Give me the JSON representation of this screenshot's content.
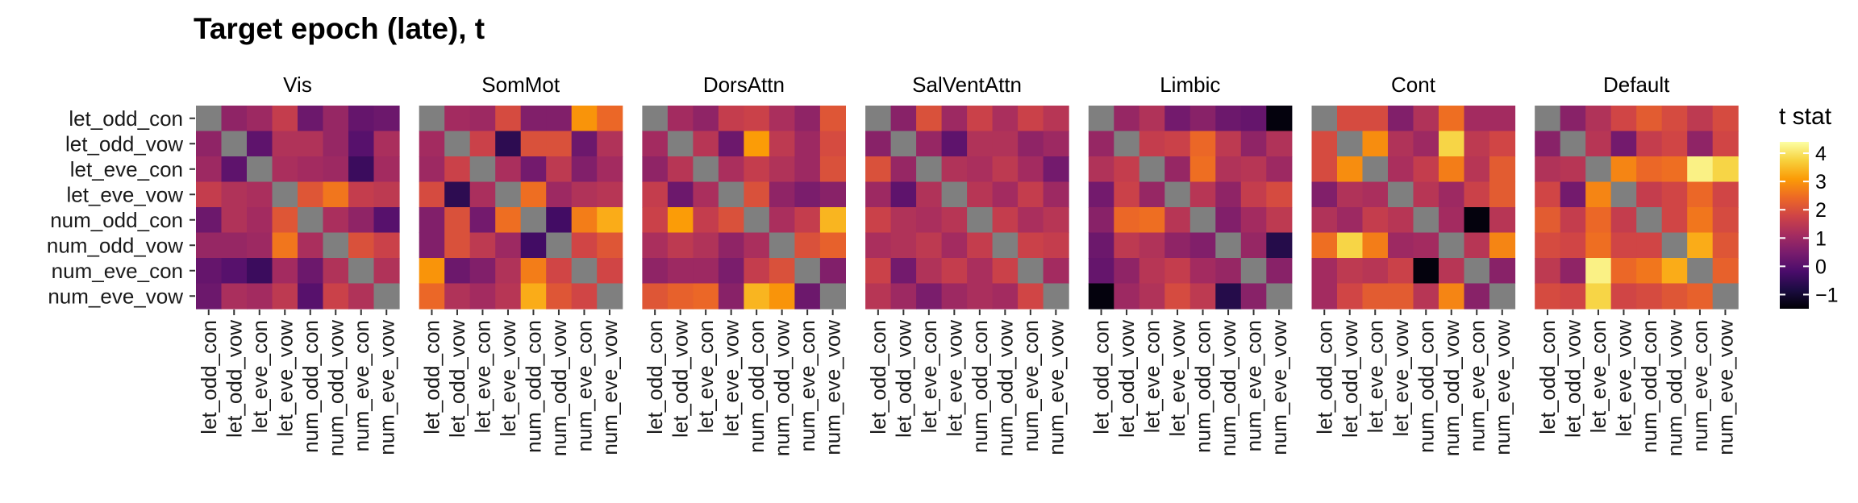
{
  "chart_data": {
    "type": "heatmap",
    "title": "Target epoch (late), t",
    "legend": {
      "title": "t stat",
      "position": "right",
      "ticks": [
        -1,
        0,
        1,
        2,
        3,
        4
      ],
      "range": [
        -1.5,
        4.4
      ]
    },
    "conditions": [
      "let_odd_con",
      "let_odd_vow",
      "let_eve_con",
      "let_eve_vow",
      "num_odd_con",
      "num_odd_vow",
      "num_eve_con",
      "num_eve_vow"
    ],
    "diagonal": "NA (grey)",
    "na_color": "#7f7f7f",
    "colors": {
      "scale": [
        "#000004",
        "#1b0c41",
        "#4a0c6b",
        "#781c6d",
        "#a52c60",
        "#cf4446",
        "#ed6925",
        "#fb9b06",
        "#f7d13d",
        "#fcffa4"
      ]
    },
    "panels": [
      {
        "name": "Vis",
        "matrix": [
          [
            null,
            0.8,
            1.0,
            1.6,
            0.3,
            0.9,
            0.2,
            0.3
          ],
          [
            0.8,
            null,
            0.1,
            1.3,
            1.3,
            0.9,
            0.0,
            1.2
          ],
          [
            1.0,
            0.1,
            null,
            1.2,
            1.1,
            1.0,
            -0.4,
            1.1
          ],
          [
            1.6,
            1.3,
            1.2,
            null,
            2.1,
            2.6,
            1.6,
            1.5
          ],
          [
            0.3,
            1.3,
            1.1,
            2.1,
            null,
            1.2,
            0.8,
            0.0
          ],
          [
            0.9,
            0.9,
            1.0,
            2.6,
            1.2,
            null,
            2.0,
            1.7
          ],
          [
            0.2,
            0.0,
            -0.4,
            1.1,
            0.3,
            1.3,
            null,
            1.3
          ],
          [
            0.3,
            1.2,
            1.1,
            1.5,
            0.0,
            1.7,
            1.3,
            null
          ]
        ]
      },
      {
        "name": "SomMot",
        "matrix": [
          [
            null,
            1.1,
            1.0,
            1.9,
            0.6,
            0.6,
            3.0,
            2.4
          ],
          [
            1.1,
            null,
            1.7,
            -0.6,
            2.0,
            2.0,
            0.3,
            1.3
          ],
          [
            1.0,
            1.7,
            null,
            1.2,
            0.4,
            1.5,
            0.6,
            1.1
          ],
          [
            1.9,
            -0.6,
            1.2,
            null,
            2.5,
            1.0,
            1.3,
            1.4
          ],
          [
            0.6,
            2.0,
            0.4,
            2.5,
            null,
            -0.3,
            2.7,
            3.3
          ],
          [
            0.6,
            2.0,
            1.5,
            1.0,
            -0.3,
            null,
            1.8,
            2.1
          ],
          [
            3.0,
            0.3,
            0.6,
            1.3,
            2.7,
            1.8,
            null,
            1.8
          ],
          [
            2.4,
            1.3,
            1.1,
            1.4,
            3.3,
            2.1,
            1.8,
            null
          ]
        ]
      },
      {
        "name": "DorsAttn",
        "matrix": [
          [
            null,
            1.1,
            0.8,
            1.6,
            1.7,
            1.2,
            0.8,
            2.1
          ],
          [
            1.1,
            null,
            1.4,
            0.3,
            3.1,
            1.5,
            1.0,
            1.9
          ],
          [
            0.8,
            1.4,
            null,
            1.2,
            1.6,
            1.3,
            1.0,
            2.0
          ],
          [
            1.6,
            0.3,
            1.2,
            null,
            2.0,
            0.8,
            0.5,
            0.7
          ],
          [
            1.7,
            3.1,
            1.6,
            2.0,
            null,
            1.2,
            1.6,
            3.4
          ],
          [
            1.2,
            1.5,
            1.3,
            0.8,
            1.2,
            null,
            2.0,
            2.3
          ],
          [
            0.8,
            1.0,
            1.0,
            0.5,
            1.6,
            2.0,
            null,
            0.6
          ],
          [
            2.1,
            2.3,
            2.4,
            0.7,
            3.4,
            3.0,
            0.3,
            null
          ]
        ]
      },
      {
        "name": "SalVentAttn",
        "matrix": [
          [
            null,
            0.7,
            2.0,
            1.0,
            1.7,
            1.2,
            1.7,
            1.4
          ],
          [
            0.7,
            null,
            0.9,
            0.1,
            1.3,
            1.3,
            0.8,
            1.0
          ],
          [
            2.0,
            0.9,
            null,
            1.3,
            1.2,
            1.5,
            1.1,
            0.4
          ],
          [
            1.0,
            0.1,
            1.3,
            null,
            1.4,
            1.1,
            1.6,
            1.0
          ],
          [
            1.7,
            1.3,
            1.2,
            1.4,
            null,
            1.6,
            1.2,
            1.4
          ],
          [
            1.2,
            1.3,
            1.5,
            1.1,
            1.6,
            null,
            1.7,
            1.6
          ],
          [
            1.7,
            0.4,
            1.3,
            1.6,
            1.2,
            1.7,
            null,
            1.1
          ],
          [
            1.4,
            1.0,
            0.5,
            1.0,
            1.2,
            1.1,
            1.8,
            null
          ]
        ]
      },
      {
        "name": "Limbic",
        "matrix": [
          [
            null,
            0.9,
            1.3,
            0.4,
            0.7,
            0.3,
            0.2,
            -1.4
          ],
          [
            0.9,
            null,
            1.6,
            1.7,
            2.4,
            1.5,
            0.8,
            1.3
          ],
          [
            1.3,
            1.6,
            null,
            0.9,
            2.5,
            1.3,
            1.4,
            1.0
          ],
          [
            0.4,
            1.7,
            0.9,
            null,
            1.4,
            0.8,
            1.6,
            1.9
          ],
          [
            0.7,
            2.4,
            2.5,
            1.4,
            null,
            0.6,
            1.1,
            1.5
          ],
          [
            0.3,
            1.5,
            1.3,
            0.8,
            0.6,
            null,
            0.9,
            -0.7
          ],
          [
            0.2,
            0.8,
            1.4,
            1.6,
            1.1,
            0.9,
            null,
            0.7
          ],
          [
            -1.4,
            1.0,
            1.3,
            1.9,
            1.5,
            -0.7,
            0.7,
            null
          ]
        ]
      },
      {
        "name": "Cont",
        "matrix": [
          [
            null,
            1.9,
            1.9,
            0.6,
            1.3,
            2.5,
            1.1,
            1.1
          ],
          [
            1.9,
            null,
            2.9,
            1.3,
            1.0,
            3.8,
            1.5,
            1.8
          ],
          [
            1.9,
            2.9,
            null,
            1.2,
            1.6,
            2.7,
            1.4,
            2.2
          ],
          [
            0.6,
            1.3,
            1.2,
            null,
            1.4,
            1.0,
            1.7,
            2.2
          ],
          [
            1.3,
            1.0,
            1.6,
            1.4,
            null,
            1.1,
            -1.4,
            1.4
          ],
          [
            2.5,
            3.8,
            2.7,
            1.0,
            1.1,
            null,
            1.4,
            2.8
          ],
          [
            1.1,
            1.5,
            1.4,
            1.7,
            -1.4,
            1.4,
            null,
            0.7
          ],
          [
            1.1,
            1.8,
            2.2,
            2.2,
            1.4,
            2.8,
            0.7,
            null
          ]
        ]
      },
      {
        "name": "Default",
        "matrix": [
          [
            null,
            0.7,
            1.3,
            1.8,
            2.2,
            1.9,
            1.5,
            1.9
          ],
          [
            0.7,
            null,
            1.4,
            0.4,
            1.6,
            1.8,
            0.8,
            1.8
          ],
          [
            1.3,
            1.4,
            null,
            2.8,
            2.4,
            2.5,
            4.2,
            3.8
          ],
          [
            1.8,
            0.4,
            2.8,
            null,
            1.6,
            1.8,
            2.4,
            1.8
          ],
          [
            2.2,
            1.6,
            2.4,
            1.6,
            null,
            1.8,
            2.6,
            1.9
          ],
          [
            1.9,
            1.8,
            2.5,
            1.8,
            1.8,
            null,
            3.3,
            2.1
          ],
          [
            1.5,
            0.8,
            4.2,
            2.4,
            2.6,
            3.3,
            null,
            2.3
          ],
          [
            1.9,
            1.8,
            3.8,
            1.8,
            1.9,
            2.1,
            2.3,
            null
          ]
        ]
      }
    ]
  }
}
